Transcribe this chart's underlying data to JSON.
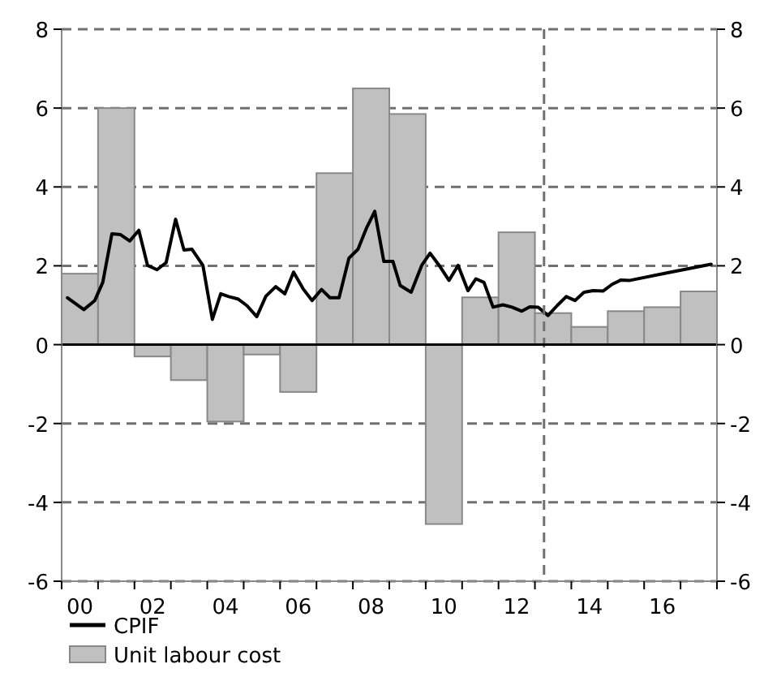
{
  "chart_data": {
    "type": "bar",
    "x": [
      2000,
      2001,
      2002,
      2003,
      2004,
      2005,
      2006,
      2007,
      2008,
      2009,
      2010,
      2011,
      2012,
      2013,
      2014,
      2015,
      2016,
      2017
    ],
    "series": [
      {
        "name": "CPIF",
        "type": "line",
        "color": "#000000",
        "x": [
          1999.66,
          2000.11,
          2000.41,
          2000.63,
          2000.88,
          2001.12,
          2001.37,
          2001.62,
          2001.86,
          2002.12,
          2002.37,
          2002.63,
          2002.86,
          2003.08,
          2003.38,
          2003.64,
          2003.87,
          2004.09,
          2004.34,
          2004.59,
          2004.86,
          2005.11,
          2005.38,
          2005.63,
          2005.87,
          2006.13,
          2006.38,
          2006.64,
          2006.87,
          2007.12,
          2007.39,
          2007.64,
          2007.88,
          2008.1,
          2008.35,
          2008.6,
          2008.8,
          2009.1,
          2009.39,
          2009.62,
          2009.87,
          2010.14,
          2010.39,
          2010.66,
          2010.88,
          2011.1,
          2011.35,
          2011.62,
          2011.87,
          2012.14,
          2012.36,
          2012.59,
          2012.86,
          2013.11,
          2013.36,
          2013.6,
          2013.85,
          2014.1,
          2014.37,
          2014.62,
          2014.86,
          2015.11,
          2016.23,
          2017.34
        ],
        "values": [
          1.19,
          0.89,
          1.12,
          1.58,
          2.81,
          2.79,
          2.63,
          2.9,
          2.01,
          1.9,
          2.08,
          3.18,
          2.4,
          2.42,
          2.01,
          0.64,
          1.29,
          1.22,
          1.16,
          0.99,
          0.71,
          1.23,
          1.47,
          1.29,
          1.84,
          1.42,
          1.12,
          1.4,
          1.19,
          1.19,
          2.19,
          2.42,
          2.97,
          3.38,
          2.11,
          2.11,
          1.5,
          1.33,
          2.01,
          2.32,
          2.01,
          1.63,
          2.01,
          1.37,
          1.67,
          1.58,
          0.95,
          1.01,
          0.95,
          0.85,
          0.96,
          0.95,
          0.74,
          0.99,
          1.22,
          1.12,
          1.33,
          1.37,
          1.36,
          1.53,
          1.64,
          1.63,
          1.84,
          2.04
        ]
      },
      {
        "name": "Unit labour cost",
        "color": "#c0c0c0",
        "values": [
          1.8,
          6.0,
          -0.3,
          -0.9,
          -1.95,
          -0.25,
          -1.2,
          4.35,
          6.5,
          5.85,
          -4.55,
          1.2,
          2.85,
          0.8,
          0.45,
          0.85,
          0.95,
          1.35
        ]
      }
    ],
    "xlim": [
      1999.5,
      2017.5
    ],
    "xticks": [
      {
        "value": 1999.5,
        "label": null
      },
      {
        "value": 2000,
        "label": "00"
      },
      {
        "value": 2000.5,
        "label": null
      },
      {
        "value": 2001.5,
        "label": null
      },
      {
        "value": 2002,
        "label": "02"
      },
      {
        "value": 2002.5,
        "label": null
      },
      {
        "value": 2003.5,
        "label": null
      },
      {
        "value": 2004,
        "label": "04"
      },
      {
        "value": 2004.5,
        "label": null
      },
      {
        "value": 2005.5,
        "label": null
      },
      {
        "value": 2006,
        "label": "06"
      },
      {
        "value": 2006.5,
        "label": null
      },
      {
        "value": 2007.5,
        "label": null
      },
      {
        "value": 2008,
        "label": "08"
      },
      {
        "value": 2008.5,
        "label": null
      },
      {
        "value": 2009.5,
        "label": null
      },
      {
        "value": 2010,
        "label": "10"
      },
      {
        "value": 2010.5,
        "label": null
      },
      {
        "value": 2011.5,
        "label": null
      },
      {
        "value": 2012,
        "label": "12"
      },
      {
        "value": 2012.5,
        "label": null
      },
      {
        "value": 2013.5,
        "label": null
      },
      {
        "value": 2014,
        "label": "14"
      },
      {
        "value": 2014.5,
        "label": null
      },
      {
        "value": 2015.5,
        "label": null
      },
      {
        "value": 2016,
        "label": "16"
      },
      {
        "value": 2016.5,
        "label": null
      },
      {
        "value": 2017.5,
        "label": null
      }
    ],
    "ylim": [
      -6,
      8
    ],
    "yticks": [
      -6,
      -4,
      -2,
      0,
      2,
      4,
      6,
      8
    ],
    "y2lim": [
      -6,
      8
    ],
    "y2ticks": [
      -6,
      -4,
      -2,
      0,
      2,
      4,
      6,
      8
    ],
    "grid": "y",
    "legend": "bottom",
    "line_style": "solid",
    "ref_lines": [
      {
        "axis": "x",
        "value": 2012.75,
        "color": "#707070",
        "line_style": "dashed"
      }
    ]
  }
}
